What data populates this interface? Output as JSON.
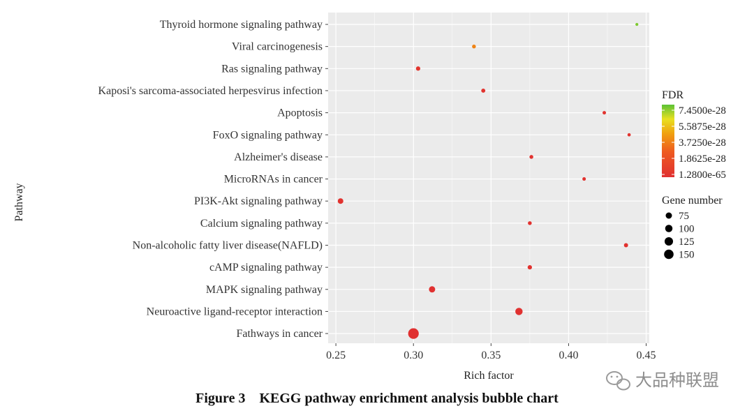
{
  "chart_data": {
    "type": "scatter",
    "title": "",
    "xlabel": "Rich factor",
    "ylabel": "Pathway",
    "xlim": [
      0.245,
      0.452
    ],
    "xticks": [
      "0.25",
      "0.30",
      "0.35",
      "0.40",
      "0.45"
    ],
    "grid": true,
    "categories": [
      "Thyroid hormone signaling pathway",
      "Viral carcinogenesis",
      "Ras signaling pathway",
      "Kaposi's sarcoma-associated herpesvirus infection",
      "Apoptosis",
      "FoxO signaling pathway",
      "Alzheimer's disease",
      "MicroRNAs in cancer",
      "PI3K-Akt signaling pathway",
      "Calcium signaling pathway",
      "Non-alcoholic fatty liver disease(NAFLD)",
      "cAMP signaling pathway",
      "MAPK signaling pathway",
      "Neuroactive ligand-receptor interaction",
      "Fathways in cancer"
    ],
    "points": [
      {
        "pathway": "Thyroid hormone signaling pathway",
        "rich_factor": 0.444,
        "gene_number": 62,
        "fdr_norm": 0.95
      },
      {
        "pathway": "Viral carcinogenesis",
        "rich_factor": 0.339,
        "gene_number": 72,
        "fdr_norm": 0.5
      },
      {
        "pathway": "Ras signaling pathway",
        "rich_factor": 0.303,
        "gene_number": 78,
        "fdr_norm": 0.05
      },
      {
        "pathway": "Kaposi's sarcoma-associated herpesvirus infection",
        "rich_factor": 0.345,
        "gene_number": 75,
        "fdr_norm": 0.03
      },
      {
        "pathway": "Apoptosis",
        "rich_factor": 0.423,
        "gene_number": 68,
        "fdr_norm": 0.03
      },
      {
        "pathway": "FoxO signaling pathway",
        "rich_factor": 0.439,
        "gene_number": 66,
        "fdr_norm": 0.03
      },
      {
        "pathway": "Alzheimer's disease",
        "rich_factor": 0.376,
        "gene_number": 72,
        "fdr_norm": 0.02
      },
      {
        "pathway": "MicroRNAs in cancer",
        "rich_factor": 0.41,
        "gene_number": 68,
        "fdr_norm": 0.02
      },
      {
        "pathway": "PI3K-Akt signaling pathway",
        "rich_factor": 0.253,
        "gene_number": 92,
        "fdr_norm": 0.02
      },
      {
        "pathway": "Calcium signaling pathway",
        "rich_factor": 0.375,
        "gene_number": 72,
        "fdr_norm": 0.02
      },
      {
        "pathway": "Non-alcoholic fatty liver disease(NAFLD)",
        "rich_factor": 0.437,
        "gene_number": 76,
        "fdr_norm": 0.02
      },
      {
        "pathway": "cAMP signaling pathway",
        "rich_factor": 0.375,
        "gene_number": 78,
        "fdr_norm": 0.02
      },
      {
        "pathway": "MAPK signaling pathway",
        "rich_factor": 0.312,
        "gene_number": 100,
        "fdr_norm": 0.01
      },
      {
        "pathway": "Neuroactive ligand-receptor interaction",
        "rich_factor": 0.368,
        "gene_number": 112,
        "fdr_norm": 0.01
      },
      {
        "pathway": "Fathways in cancer",
        "rich_factor": 0.3,
        "gene_number": 150,
        "fdr_norm": 0.0
      }
    ],
    "legend": {
      "color_title": "FDR",
      "color_labels": [
        "7.4500e-28",
        "5.5875e-28",
        "3.7250e-28",
        "1.8625e-28",
        "1.2800e-65"
      ],
      "colors": [
        "#5bc236",
        "#e8e020",
        "#f0a010",
        "#ee5a20",
        "#e03030"
      ],
      "size_title": "Gene number",
      "size_labels": [
        "75",
        "100",
        "125",
        "150"
      ],
      "size_values": [
        75,
        100,
        125,
        150
      ]
    },
    "caption": "Figure 3    KEGG pathway enrichment analysis bubble chart"
  },
  "watermark": {
    "text": "大品种联盟"
  },
  "colors": {
    "panel_bg": "#ebebeb",
    "grid": "#ffffff",
    "point_low": "#e03030",
    "point_high": "#5bc236"
  }
}
